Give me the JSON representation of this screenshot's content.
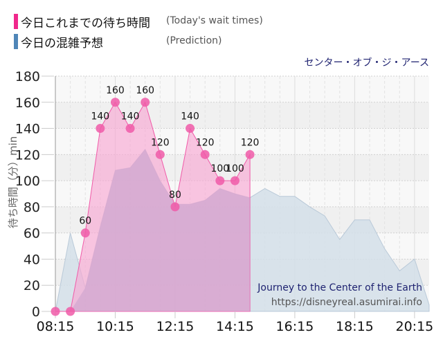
{
  "legend": {
    "today": {
      "label_jp": "今日これまでの待ち時間",
      "label_en": "(Today's wait times)",
      "color": "#f0288c"
    },
    "prediction": {
      "label_jp": "今日の混雑予想",
      "label_en": "(Prediction)",
      "color": "#4f86b8"
    }
  },
  "attraction_jp": "センター・オブ・ジ・アース",
  "watermark": {
    "title": "Journey to the Center of the Earth",
    "url": "https://disneyreal.asumirai.info"
  },
  "chart_data": {
    "type": "area",
    "title": "センター・オブ・ジ・アース",
    "xlabel": "",
    "ylabel": "待ち時間（分）min",
    "ylim": [
      0,
      180
    ],
    "yticks": [
      0,
      20,
      40,
      60,
      80,
      100,
      120,
      140,
      160,
      180
    ],
    "xtick_labels": [
      "08:15",
      "10:15",
      "12:15",
      "14:15",
      "16:15",
      "18:15",
      "20:15"
    ],
    "grid": true,
    "legend_position": "top-left",
    "series": [
      {
        "name": "今日これまでの待ち時間 (Today's wait times)",
        "color": "#f0288c",
        "x": [
          "08:15",
          "08:45",
          "09:15",
          "09:45",
          "10:15",
          "10:45",
          "11:15",
          "11:45",
          "12:15",
          "12:45",
          "13:15",
          "13:45",
          "14:15",
          "14:45"
        ],
        "values": [
          0,
          0,
          60,
          140,
          160,
          140,
          160,
          120,
          80,
          140,
          120,
          100,
          100,
          120
        ]
      },
      {
        "name": "今日の混雑予想 (Prediction)",
        "color": "#4f86b8",
        "x": [
          "08:15",
          "08:45",
          "09:15",
          "09:45",
          "10:15",
          "10:45",
          "11:15",
          "11:45",
          "12:15",
          "12:45",
          "13:15",
          "13:45",
          "14:15",
          "14:45",
          "15:15",
          "15:45",
          "16:15",
          "16:45",
          "17:15",
          "17:45",
          "18:15",
          "18:45",
          "19:15",
          "19:45",
          "20:15",
          "20:45"
        ],
        "values": [
          0,
          60,
          18,
          65,
          108,
          110,
          124,
          100,
          82,
          82,
          85,
          94,
          90,
          87,
          94,
          88,
          88,
          80,
          73,
          55,
          70,
          70,
          48,
          31,
          40,
          5
        ]
      }
    ]
  }
}
